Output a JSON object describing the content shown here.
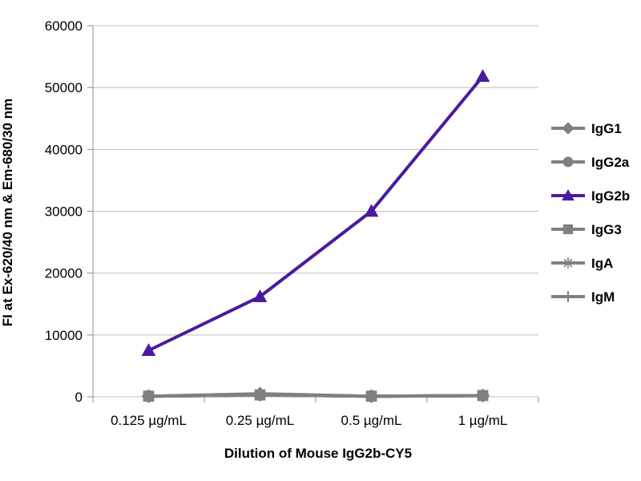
{
  "chart_data": {
    "type": "line",
    "title": "",
    "xlabel": "Dilution of Mouse IgG2b-CY5",
    "ylabel": "FI at Ex-620/40 nm & Em-680/30 nm",
    "categories": [
      "0.125 µg/mL",
      "0.25 µg/mL",
      "0.5 µg/mL",
      "1 µg/mL"
    ],
    "ylim": [
      0,
      60000
    ],
    "yticks": [
      0,
      10000,
      20000,
      30000,
      40000,
      50000,
      60000
    ],
    "grid": true,
    "legend_position": "right",
    "series": [
      {
        "name": "IgG1",
        "values": [
          100,
          500,
          100,
          200
        ],
        "color": "#808080",
        "marker": "diamond"
      },
      {
        "name": "IgG2a",
        "values": [
          100,
          300,
          100,
          200
        ],
        "color": "#808080",
        "marker": "circle"
      },
      {
        "name": "IgG2b",
        "values": [
          7500,
          16200,
          30000,
          51800
        ],
        "color": "#4B1AA0",
        "marker": "triangle"
      },
      {
        "name": "IgG3",
        "values": [
          100,
          300,
          100,
          200
        ],
        "color": "#808080",
        "marker": "square"
      },
      {
        "name": "IgA",
        "values": [
          100,
          300,
          100,
          200
        ],
        "color": "#808080",
        "marker": "star"
      },
      {
        "name": "IgM",
        "values": [
          100,
          300,
          100,
          200
        ],
        "color": "#808080",
        "marker": "plus"
      }
    ]
  }
}
